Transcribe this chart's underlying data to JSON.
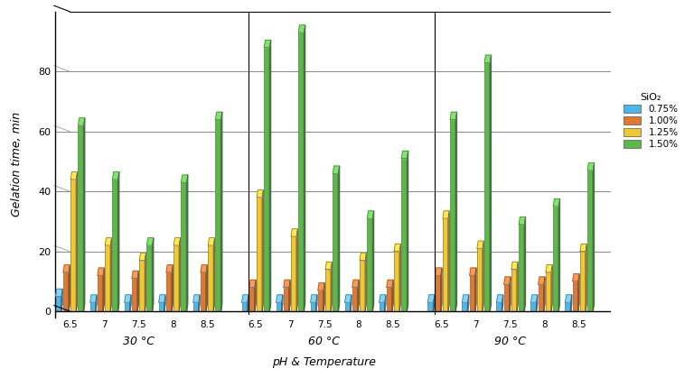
{
  "xlabel": "pH & Temperature",
  "ylabel": "Gelation time, min",
  "temperatures": [
    "30 °C",
    "60 °C",
    "90 °C"
  ],
  "ph_values": [
    "6.5",
    "7",
    "7.5",
    "8",
    "8.5"
  ],
  "sio2_labels": [
    "0.75%",
    "1.00%",
    "1.25%",
    "1.50%"
  ],
  "sio2_colors_face": [
    "#4DB8E8",
    "#E07830",
    "#F0C830",
    "#5CB848"
  ],
  "sio2_colors_dark": [
    "#2A8AB8",
    "#B05818",
    "#C09010",
    "#3A9030"
  ],
  "sio2_colors_top": [
    "#7DD8FF",
    "#FF9850",
    "#FFE850",
    "#7CE868"
  ],
  "data": {
    "30": {
      "0.75": [
        5,
        3,
        3,
        3,
        3
      ],
      "1.00": [
        13,
        12,
        11,
        13,
        13
      ],
      "1.25": [
        44,
        22,
        17,
        22,
        22
      ],
      "1.50": [
        62,
        44,
        22,
        43,
        64
      ]
    },
    "60": {
      "0.75": [
        3,
        3,
        3,
        3,
        3
      ],
      "1.00": [
        8,
        8,
        7,
        8,
        8
      ],
      "1.25": [
        38,
        25,
        14,
        17,
        20
      ],
      "1.50": [
        88,
        93,
        46,
        31,
        51
      ]
    },
    "90": {
      "0.75": [
        3,
        3,
        3,
        3,
        3
      ],
      "1.00": [
        12,
        12,
        9,
        9,
        10
      ],
      "1.25": [
        31,
        21,
        14,
        13,
        20
      ],
      "1.50": [
        64,
        83,
        29,
        35,
        47
      ]
    }
  },
  "ylim": [
    0,
    100
  ],
  "yticks": [
    0,
    20,
    40,
    60,
    80
  ],
  "background_color": "#ffffff"
}
